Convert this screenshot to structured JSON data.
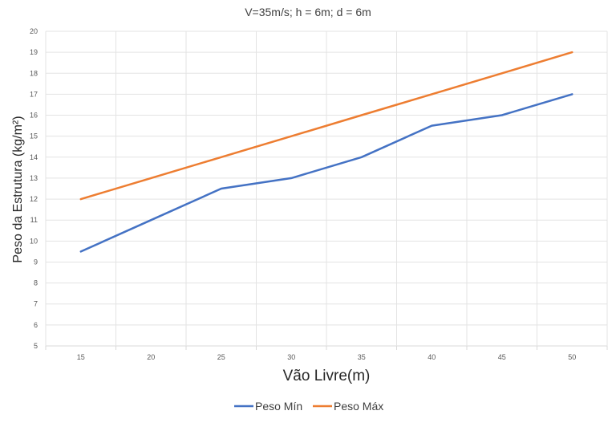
{
  "chart_data": {
    "type": "line",
    "title": "V=35m/s; h = 6m; d = 6m",
    "xlabel": "Vão Livre(m)",
    "ylabel": "Peso da Estrutura (kg/m²)",
    "x": [
      15,
      20,
      25,
      30,
      35,
      40,
      45,
      50
    ],
    "ylim": [
      5,
      20
    ],
    "yticks": [
      5,
      6,
      7,
      8,
      9,
      10,
      11,
      12,
      13,
      14,
      15,
      16,
      17,
      18,
      19,
      20
    ],
    "grid": true,
    "legend_position": "bottom",
    "series": [
      {
        "name": "Peso Mín",
        "color": "#4472C4",
        "values": [
          9.5,
          11,
          12.5,
          13,
          14,
          15.5,
          16,
          17
        ]
      },
      {
        "name": "Peso Máx",
        "color": "#ED7D31",
        "values": [
          12,
          13,
          14,
          15,
          16,
          17,
          18,
          19
        ]
      }
    ]
  }
}
